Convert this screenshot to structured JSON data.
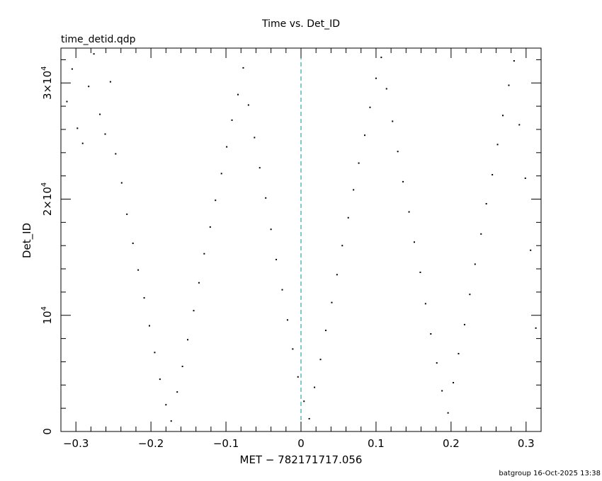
{
  "chart_data": {
    "type": "scatter",
    "title": "Time vs. Det_ID",
    "subtitle": "time_detid.qdp",
    "xlabel": "MET − 782171717.056",
    "ylabel": "Det_ID",
    "xlim": [
      -0.32,
      0.32
    ],
    "ylim": [
      0,
      33000
    ],
    "x_ticks": [
      {
        "value": -0.3,
        "label": "−0.3"
      },
      {
        "value": -0.2,
        "label": "−0.2"
      },
      {
        "value": -0.1,
        "label": "−0.1"
      },
      {
        "value": 0,
        "label": "0"
      },
      {
        "value": 0.1,
        "label": "0.1"
      },
      {
        "value": 0.2,
        "label": "0.2"
      },
      {
        "value": 0.3,
        "label": "0.3"
      }
    ],
    "y_ticks": [
      {
        "value": 0,
        "base": "0",
        "exp": ""
      },
      {
        "value": 10000,
        "base": "10",
        "exp": "4"
      },
      {
        "value": 20000,
        "base": "2×10",
        "exp": "4"
      },
      {
        "value": 30000,
        "base": "3×10",
        "exp": "4"
      }
    ],
    "reference_line": {
      "x": 0,
      "color": "#009999",
      "style": "dashed"
    },
    "point_color": "#000000",
    "grid": false,
    "footer": "batgroup 16-Oct-2025 13:38",
    "series": [
      {
        "x": [
          -0.312,
          -0.305,
          -0.298,
          -0.291,
          -0.283,
          -0.276,
          -0.268,
          -0.261,
          -0.254,
          -0.247,
          -0.239,
          -0.232,
          -0.224,
          -0.217,
          -0.209,
          -0.202,
          -0.195,
          -0.188,
          -0.18,
          -0.173,
          -0.165,
          -0.158,
          -0.151,
          -0.143,
          -0.136,
          -0.129,
          -0.121,
          -0.114,
          -0.106,
          -0.099,
          -0.092,
          -0.084,
          -0.077,
          -0.07,
          -0.062,
          -0.055,
          -0.047,
          -0.04,
          -0.033,
          -0.025,
          -0.018,
          -0.011,
          -0.004,
          0.004,
          0.011,
          0.018,
          0.026,
          0.033,
          0.041,
          0.048,
          0.055,
          0.063,
          0.07,
          0.077,
          0.085,
          0.092,
          0.1,
          0.107,
          0.114,
          0.122,
          0.129,
          0.136,
          0.144,
          0.151,
          0.159,
          0.166,
          0.173,
          0.181,
          0.188,
          0.196,
          0.203,
          0.21,
          0.218,
          0.225,
          0.232,
          0.24,
          0.247,
          0.255,
          0.262,
          0.269,
          0.277,
          0.284,
          0.291,
          0.299,
          0.306,
          0.313
        ],
        "y": [
          28400,
          31200,
          26100,
          24800,
          29700,
          32500,
          27300,
          25600,
          30100,
          23900,
          21400,
          18700,
          16200,
          13900,
          11500,
          9100,
          6800,
          4500,
          2300,
          900,
          3400,
          5600,
          7900,
          10400,
          12800,
          15300,
          17600,
          19900,
          22200,
          24500,
          26800,
          29000,
          31300,
          28100,
          25300,
          22700,
          20100,
          17400,
          14800,
          12200,
          9600,
          7100,
          4700,
          2600,
          1100,
          3800,
          6200,
          8700,
          11100,
          13500,
          16000,
          18400,
          20800,
          23100,
          25500,
          27900,
          30400,
          32200,
          29500,
          26700,
          24100,
          21500,
          18900,
          16300,
          13700,
          11000,
          8400,
          5900,
          3500,
          1600,
          4200,
          6700,
          9200,
          11800,
          14400,
          17000,
          19600,
          22100,
          24700,
          27200,
          29800,
          31900,
          26400,
          21800,
          15600,
          8900
        ]
      }
    ]
  }
}
